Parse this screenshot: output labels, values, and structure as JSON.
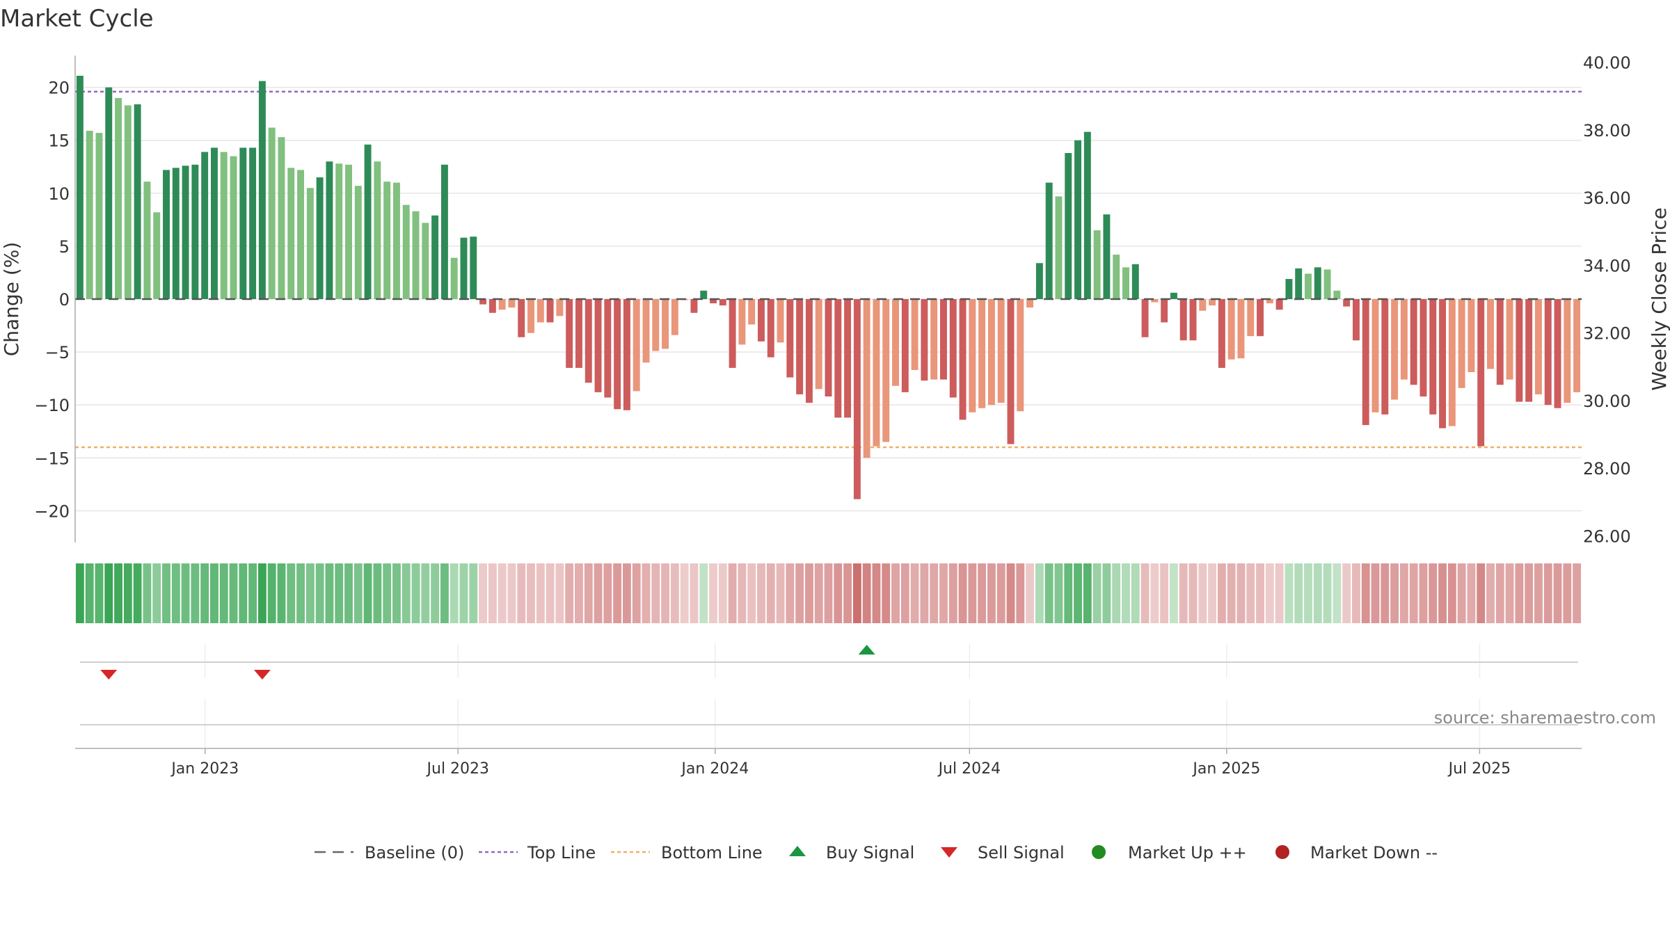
{
  "chart_data": {
    "type": "bar",
    "title": "Market Cycle",
    "ylabel": "Change (%)",
    "y2label": "Weekly Close Price",
    "ylim": [
      -23,
      23
    ],
    "y2lim": [
      25.8,
      40.2
    ],
    "yticks": [
      20,
      15,
      10,
      5,
      0,
      -5,
      -10,
      -15,
      -20
    ],
    "ytick_labels": [
      "20",
      "15",
      "10",
      "5",
      "0",
      "−5",
      "−10",
      "−15",
      "−20"
    ],
    "y2ticks": [
      40,
      38,
      36,
      34,
      32,
      30,
      28,
      26
    ],
    "y2tick_labels": [
      "40.00",
      "38.00",
      "36.00",
      "34.00",
      "32.00",
      "30.00",
      "28.00",
      "26.00"
    ],
    "x_start_date": "2022-09-30",
    "x_end_date": "2025-09-12",
    "x_tick_dates": [
      "2023-01-01",
      "2023-07-01",
      "2024-01-01",
      "2024-07-01",
      "2025-01-01",
      "2025-07-01"
    ],
    "x_tick_labels": [
      "Jan 2023",
      "Jul 2023",
      "Jan 2024",
      "Jul 2024",
      "Jan 2025",
      "Jul 2025"
    ],
    "grid": true,
    "top_line": 19.6,
    "bottom_line": -14.0,
    "values": [
      21.1,
      15.9,
      15.7,
      20.0,
      19.0,
      18.3,
      18.4,
      11.1,
      8.2,
      12.2,
      12.4,
      12.6,
      12.7,
      13.9,
      14.3,
      13.9,
      13.5,
      14.3,
      14.3,
      20.6,
      16.2,
      15.3,
      12.4,
      12.2,
      10.5,
      11.5,
      13.0,
      12.8,
      12.7,
      10.7,
      14.6,
      13.0,
      11.1,
      11.0,
      8.9,
      8.3,
      7.2,
      7.9,
      12.7,
      3.9,
      5.8,
      5.9,
      -0.5,
      -1.3,
      -1.0,
      -0.8,
      -3.6,
      -3.2,
      -2.2,
      -2.2,
      -1.6,
      -6.5,
      -6.5,
      -7.9,
      -8.8,
      -9.3,
      -10.4,
      -10.5,
      -8.7,
      -6.0,
      -4.9,
      -4.7,
      -3.4,
      -0.1,
      -1.3,
      0.8,
      -0.4,
      -0.6,
      -6.5,
      -4.3,
      -2.4,
      -4.0,
      -5.5,
      -4.1,
      -7.4,
      -9.0,
      -9.8,
      -8.5,
      -9.2,
      -11.2,
      -11.2,
      -18.9,
      -15.0,
      -13.9,
      -13.5,
      -8.2,
      -8.8,
      -6.7,
      -7.7,
      -7.6,
      -7.6,
      -9.3,
      -11.4,
      -10.7,
      -10.3,
      -10.0,
      -9.8,
      -13.7,
      -10.6,
      -0.8,
      3.4,
      11.0,
      9.7,
      13.8,
      15.0,
      15.8,
      6.5,
      8.0,
      4.2,
      3.0,
      3.3,
      -3.6,
      -0.3,
      -2.2,
      0.6,
      -3.9,
      -3.9,
      -1.1,
      -0.6,
      -6.5,
      -5.7,
      -5.6,
      -3.5,
      -3.5,
      -0.4,
      -1.0,
      1.9,
      2.9,
      2.4,
      3.0,
      2.8,
      0.8,
      -0.7,
      -3.9,
      -11.9,
      -10.7,
      -10.9,
      -9.5,
      -7.6,
      -8.1,
      -9.2,
      -10.9,
      -12.2,
      -12.0,
      -8.4,
      -6.9,
      -13.9,
      -6.6,
      -8.1,
      -7.6,
      -9.7,
      -9.7,
      -9.0,
      -10.0,
      -10.3,
      -9.8,
      -8.8
    ],
    "sell_signal_weeks": [
      3,
      19
    ],
    "buy_signal_weeks": [
      82
    ],
    "legend": {
      "position": "bottom",
      "entries": [
        "Baseline (0)",
        "Top Line",
        "Bottom Line",
        "Buy Signal",
        "Sell Signal",
        "Market Up ++",
        "Market Down --"
      ]
    },
    "annotation": "source: sharemaestro.com"
  },
  "colors": {
    "up_strong": "#2e8b57",
    "up_light": "#81c07f",
    "down_strong": "#cd5c5c",
    "down_light": "#e9967a",
    "top_line": "#9467bd",
    "bottom_line": "#f0b060",
    "buy": "#1a9641",
    "sell": "#d62728",
    "market_up": "#228b22",
    "market_down": "#b22222"
  }
}
